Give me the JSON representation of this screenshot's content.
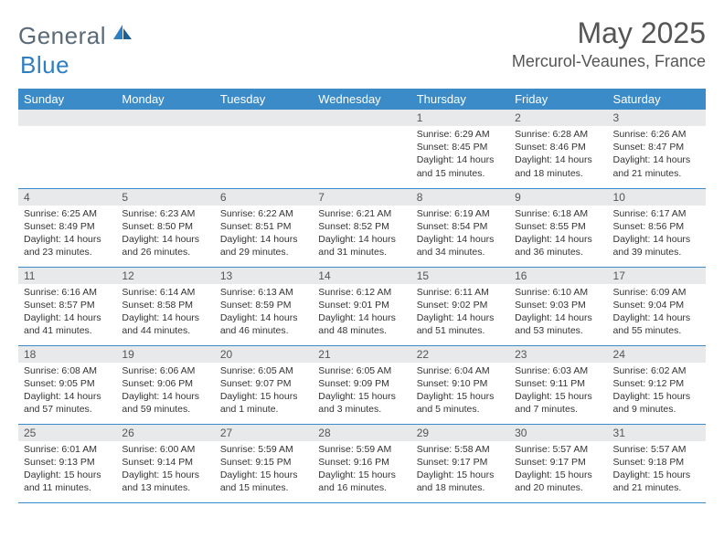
{
  "brand": {
    "part1": "General",
    "part2": "Blue"
  },
  "title": "May 2025",
  "location": "Mercurol-Veaunes, France",
  "colors": {
    "header_bg": "#3b8bc8",
    "header_text": "#ffffff",
    "daynum_bg": "#e8e9ea",
    "row_divider": "#3b8bc8",
    "logo_gray": "#5a6a78",
    "logo_blue": "#2f7ec2"
  },
  "typography": {
    "title_fontsize": 32,
    "location_fontsize": 18,
    "header_fontsize": 13,
    "daynum_fontsize": 12,
    "info_fontsize": 10.5
  },
  "dayNames": [
    "Sunday",
    "Monday",
    "Tuesday",
    "Wednesday",
    "Thursday",
    "Friday",
    "Saturday"
  ],
  "weeks": [
    [
      {
        "n": "",
        "sr": "",
        "ss": "",
        "dl": ""
      },
      {
        "n": "",
        "sr": "",
        "ss": "",
        "dl": ""
      },
      {
        "n": "",
        "sr": "",
        "ss": "",
        "dl": ""
      },
      {
        "n": "",
        "sr": "",
        "ss": "",
        "dl": ""
      },
      {
        "n": "1",
        "sr": "Sunrise: 6:29 AM",
        "ss": "Sunset: 8:45 PM",
        "dl": "Daylight: 14 hours and 15 minutes."
      },
      {
        "n": "2",
        "sr": "Sunrise: 6:28 AM",
        "ss": "Sunset: 8:46 PM",
        "dl": "Daylight: 14 hours and 18 minutes."
      },
      {
        "n": "3",
        "sr": "Sunrise: 6:26 AM",
        "ss": "Sunset: 8:47 PM",
        "dl": "Daylight: 14 hours and 21 minutes."
      }
    ],
    [
      {
        "n": "4",
        "sr": "Sunrise: 6:25 AM",
        "ss": "Sunset: 8:49 PM",
        "dl": "Daylight: 14 hours and 23 minutes."
      },
      {
        "n": "5",
        "sr": "Sunrise: 6:23 AM",
        "ss": "Sunset: 8:50 PM",
        "dl": "Daylight: 14 hours and 26 minutes."
      },
      {
        "n": "6",
        "sr": "Sunrise: 6:22 AM",
        "ss": "Sunset: 8:51 PM",
        "dl": "Daylight: 14 hours and 29 minutes."
      },
      {
        "n": "7",
        "sr": "Sunrise: 6:21 AM",
        "ss": "Sunset: 8:52 PM",
        "dl": "Daylight: 14 hours and 31 minutes."
      },
      {
        "n": "8",
        "sr": "Sunrise: 6:19 AM",
        "ss": "Sunset: 8:54 PM",
        "dl": "Daylight: 14 hours and 34 minutes."
      },
      {
        "n": "9",
        "sr": "Sunrise: 6:18 AM",
        "ss": "Sunset: 8:55 PM",
        "dl": "Daylight: 14 hours and 36 minutes."
      },
      {
        "n": "10",
        "sr": "Sunrise: 6:17 AM",
        "ss": "Sunset: 8:56 PM",
        "dl": "Daylight: 14 hours and 39 minutes."
      }
    ],
    [
      {
        "n": "11",
        "sr": "Sunrise: 6:16 AM",
        "ss": "Sunset: 8:57 PM",
        "dl": "Daylight: 14 hours and 41 minutes."
      },
      {
        "n": "12",
        "sr": "Sunrise: 6:14 AM",
        "ss": "Sunset: 8:58 PM",
        "dl": "Daylight: 14 hours and 44 minutes."
      },
      {
        "n": "13",
        "sr": "Sunrise: 6:13 AM",
        "ss": "Sunset: 8:59 PM",
        "dl": "Daylight: 14 hours and 46 minutes."
      },
      {
        "n": "14",
        "sr": "Sunrise: 6:12 AM",
        "ss": "Sunset: 9:01 PM",
        "dl": "Daylight: 14 hours and 48 minutes."
      },
      {
        "n": "15",
        "sr": "Sunrise: 6:11 AM",
        "ss": "Sunset: 9:02 PM",
        "dl": "Daylight: 14 hours and 51 minutes."
      },
      {
        "n": "16",
        "sr": "Sunrise: 6:10 AM",
        "ss": "Sunset: 9:03 PM",
        "dl": "Daylight: 14 hours and 53 minutes."
      },
      {
        "n": "17",
        "sr": "Sunrise: 6:09 AM",
        "ss": "Sunset: 9:04 PM",
        "dl": "Daylight: 14 hours and 55 minutes."
      }
    ],
    [
      {
        "n": "18",
        "sr": "Sunrise: 6:08 AM",
        "ss": "Sunset: 9:05 PM",
        "dl": "Daylight: 14 hours and 57 minutes."
      },
      {
        "n": "19",
        "sr": "Sunrise: 6:06 AM",
        "ss": "Sunset: 9:06 PM",
        "dl": "Daylight: 14 hours and 59 minutes."
      },
      {
        "n": "20",
        "sr": "Sunrise: 6:05 AM",
        "ss": "Sunset: 9:07 PM",
        "dl": "Daylight: 15 hours and 1 minute."
      },
      {
        "n": "21",
        "sr": "Sunrise: 6:05 AM",
        "ss": "Sunset: 9:09 PM",
        "dl": "Daylight: 15 hours and 3 minutes."
      },
      {
        "n": "22",
        "sr": "Sunrise: 6:04 AM",
        "ss": "Sunset: 9:10 PM",
        "dl": "Daylight: 15 hours and 5 minutes."
      },
      {
        "n": "23",
        "sr": "Sunrise: 6:03 AM",
        "ss": "Sunset: 9:11 PM",
        "dl": "Daylight: 15 hours and 7 minutes."
      },
      {
        "n": "24",
        "sr": "Sunrise: 6:02 AM",
        "ss": "Sunset: 9:12 PM",
        "dl": "Daylight: 15 hours and 9 minutes."
      }
    ],
    [
      {
        "n": "25",
        "sr": "Sunrise: 6:01 AM",
        "ss": "Sunset: 9:13 PM",
        "dl": "Daylight: 15 hours and 11 minutes."
      },
      {
        "n": "26",
        "sr": "Sunrise: 6:00 AM",
        "ss": "Sunset: 9:14 PM",
        "dl": "Daylight: 15 hours and 13 minutes."
      },
      {
        "n": "27",
        "sr": "Sunrise: 5:59 AM",
        "ss": "Sunset: 9:15 PM",
        "dl": "Daylight: 15 hours and 15 minutes."
      },
      {
        "n": "28",
        "sr": "Sunrise: 5:59 AM",
        "ss": "Sunset: 9:16 PM",
        "dl": "Daylight: 15 hours and 16 minutes."
      },
      {
        "n": "29",
        "sr": "Sunrise: 5:58 AM",
        "ss": "Sunset: 9:17 PM",
        "dl": "Daylight: 15 hours and 18 minutes."
      },
      {
        "n": "30",
        "sr": "Sunrise: 5:57 AM",
        "ss": "Sunset: 9:17 PM",
        "dl": "Daylight: 15 hours and 20 minutes."
      },
      {
        "n": "31",
        "sr": "Sunrise: 5:57 AM",
        "ss": "Sunset: 9:18 PM",
        "dl": "Daylight: 15 hours and 21 minutes."
      }
    ]
  ]
}
